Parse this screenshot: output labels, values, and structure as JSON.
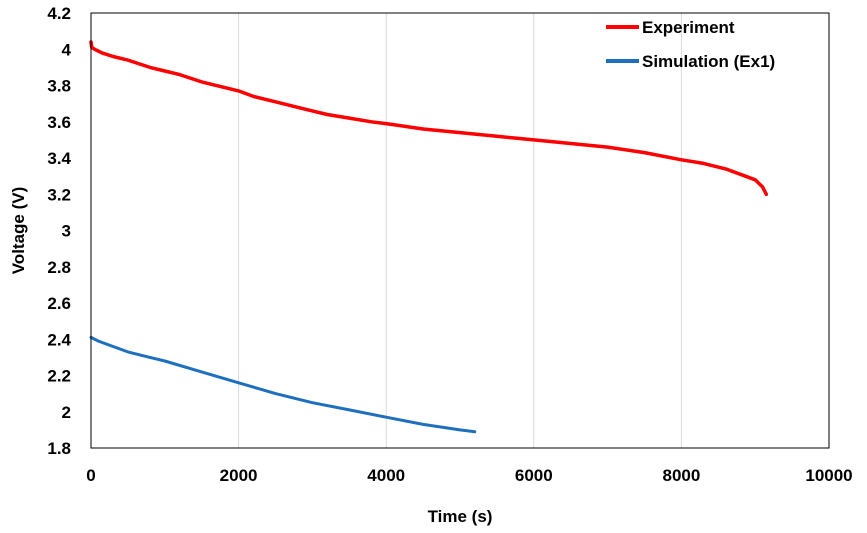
{
  "chart_data": {
    "type": "line",
    "xlabel": "Time  (s)",
    "ylabel": "Voltage  (V)",
    "xlim": [
      0,
      10000
    ],
    "ylim": [
      1.8,
      4.2
    ],
    "xticks": [
      0,
      2000,
      4000,
      6000,
      8000,
      10000
    ],
    "yticks": [
      1.8,
      2,
      2.2,
      2.4,
      2.6,
      2.8,
      3,
      3.2,
      3.4,
      3.6,
      3.8,
      4,
      4.2
    ],
    "xtick_labels": [
      "0",
      "2000",
      "4000",
      "6000",
      "8000",
      "10000"
    ],
    "ytick_labels": [
      "1.8",
      "2",
      "2.2",
      "2.4",
      "2.6",
      "2.8",
      "3",
      "3.2",
      "3.4",
      "3.6",
      "3.8",
      "4",
      "4.2"
    ],
    "grid": "vertical",
    "legend_position": "top-right",
    "series": [
      {
        "name": "Experiment",
        "color": "#ff0000",
        "x": [
          0,
          10,
          50,
          150,
          300,
          500,
          800,
          1000,
          1200,
          1500,
          1800,
          2000,
          2200,
          2500,
          2800,
          3000,
          3200,
          3500,
          3800,
          4000,
          4500,
          5000,
          5500,
          6000,
          6500,
          7000,
          7500,
          8000,
          8300,
          8600,
          8800,
          9000,
          9100,
          9150
        ],
        "y": [
          4.04,
          4.01,
          4.0,
          3.98,
          3.96,
          3.94,
          3.9,
          3.88,
          3.86,
          3.82,
          3.79,
          3.77,
          3.74,
          3.71,
          3.68,
          3.66,
          3.64,
          3.62,
          3.6,
          3.59,
          3.56,
          3.54,
          3.52,
          3.5,
          3.48,
          3.46,
          3.43,
          3.39,
          3.37,
          3.34,
          3.31,
          3.28,
          3.24,
          3.2
        ]
      },
      {
        "name": "Simulation (Ex1)",
        "color": "#1f6fbf",
        "x": [
          0,
          100,
          300,
          500,
          800,
          1000,
          1500,
          2000,
          2500,
          3000,
          3500,
          4000,
          4500,
          5000,
          5200
        ],
        "y": [
          2.41,
          2.39,
          2.36,
          2.33,
          2.3,
          2.28,
          2.22,
          2.16,
          2.1,
          2.05,
          2.01,
          1.97,
          1.93,
          1.9,
          1.89
        ]
      }
    ]
  }
}
